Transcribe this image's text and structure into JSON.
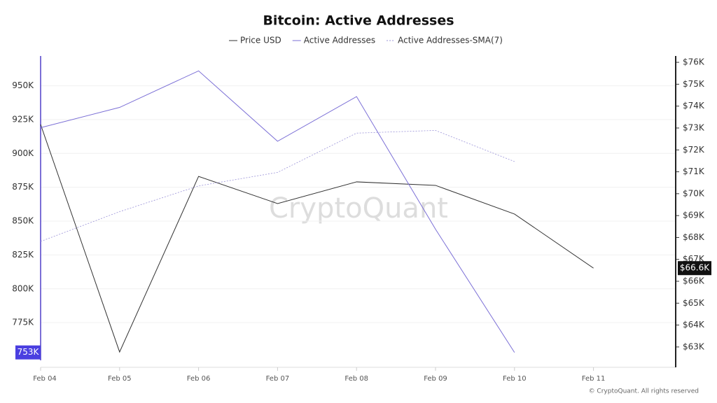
{
  "chart_data": {
    "type": "line",
    "title": "Bitcoin: Active Addresses",
    "watermark": "CryptoQuant",
    "footer": "© CryptoQuant. All rights reserved",
    "categories": [
      "Feb 04",
      "Feb 05",
      "Feb 06",
      "Feb 07",
      "Feb 08",
      "Feb 09",
      "Feb 10",
      "Feb 11"
    ],
    "ylim": [
      742000,
      972000
    ],
    "yticks": [
      {
        "value": 775000,
        "label": "775K"
      },
      {
        "value": 800000,
        "label": "800K"
      },
      {
        "value": 825000,
        "label": "825K"
      },
      {
        "value": 850000,
        "label": "850K"
      },
      {
        "value": 875000,
        "label": "875K"
      },
      {
        "value": 900000,
        "label": "900K"
      },
      {
        "value": 925000,
        "label": "925K"
      },
      {
        "value": 950000,
        "label": "950K"
      }
    ],
    "y2lim": [
      62070,
      76290
    ],
    "y2ticks": [
      {
        "value": 63000,
        "label": "$63K"
      },
      {
        "value": 64000,
        "label": "$64K"
      },
      {
        "value": 65000,
        "label": "$65K"
      },
      {
        "value": 66000,
        "label": "$66K"
      },
      {
        "value": 67000,
        "label": "$67K"
      },
      {
        "value": 68000,
        "label": "$68K"
      },
      {
        "value": 69000,
        "label": "$69K"
      },
      {
        "value": 70000,
        "label": "$70K"
      },
      {
        "value": 71000,
        "label": "$71K"
      },
      {
        "value": 72000,
        "label": "$72K"
      },
      {
        "value": 73000,
        "label": "$73K"
      },
      {
        "value": 74000,
        "label": "$74K"
      },
      {
        "value": 75000,
        "label": "$75K"
      },
      {
        "value": 76000,
        "label": "$76K"
      }
    ],
    "grid": true,
    "legend": "top",
    "series": [
      {
        "name": "Price USD",
        "color": "#333333",
        "axis": "y2",
        "dash": false,
        "values": [
          73160,
          62770,
          70790,
          69550,
          70540,
          70380,
          69070,
          66600
        ],
        "value_labels": [
          null,
          null,
          null,
          null,
          null,
          null,
          null,
          "$66.6K"
        ]
      },
      {
        "name": "Active Addresses",
        "color": "#7b6fd6",
        "dash": false,
        "values": [
          919000,
          934000,
          961000,
          909000,
          942000,
          844000,
          753000,
          null
        ],
        "value_labels": [
          null,
          null,
          null,
          null,
          null,
          null,
          "753K",
          null
        ]
      },
      {
        "name": "Active Addresses-SMA(7)",
        "color": "#9a92d8",
        "dash": true,
        "values": [
          835000,
          857000,
          876000,
          886000,
          915000,
          917000,
          894000,
          null
        ]
      }
    ]
  }
}
